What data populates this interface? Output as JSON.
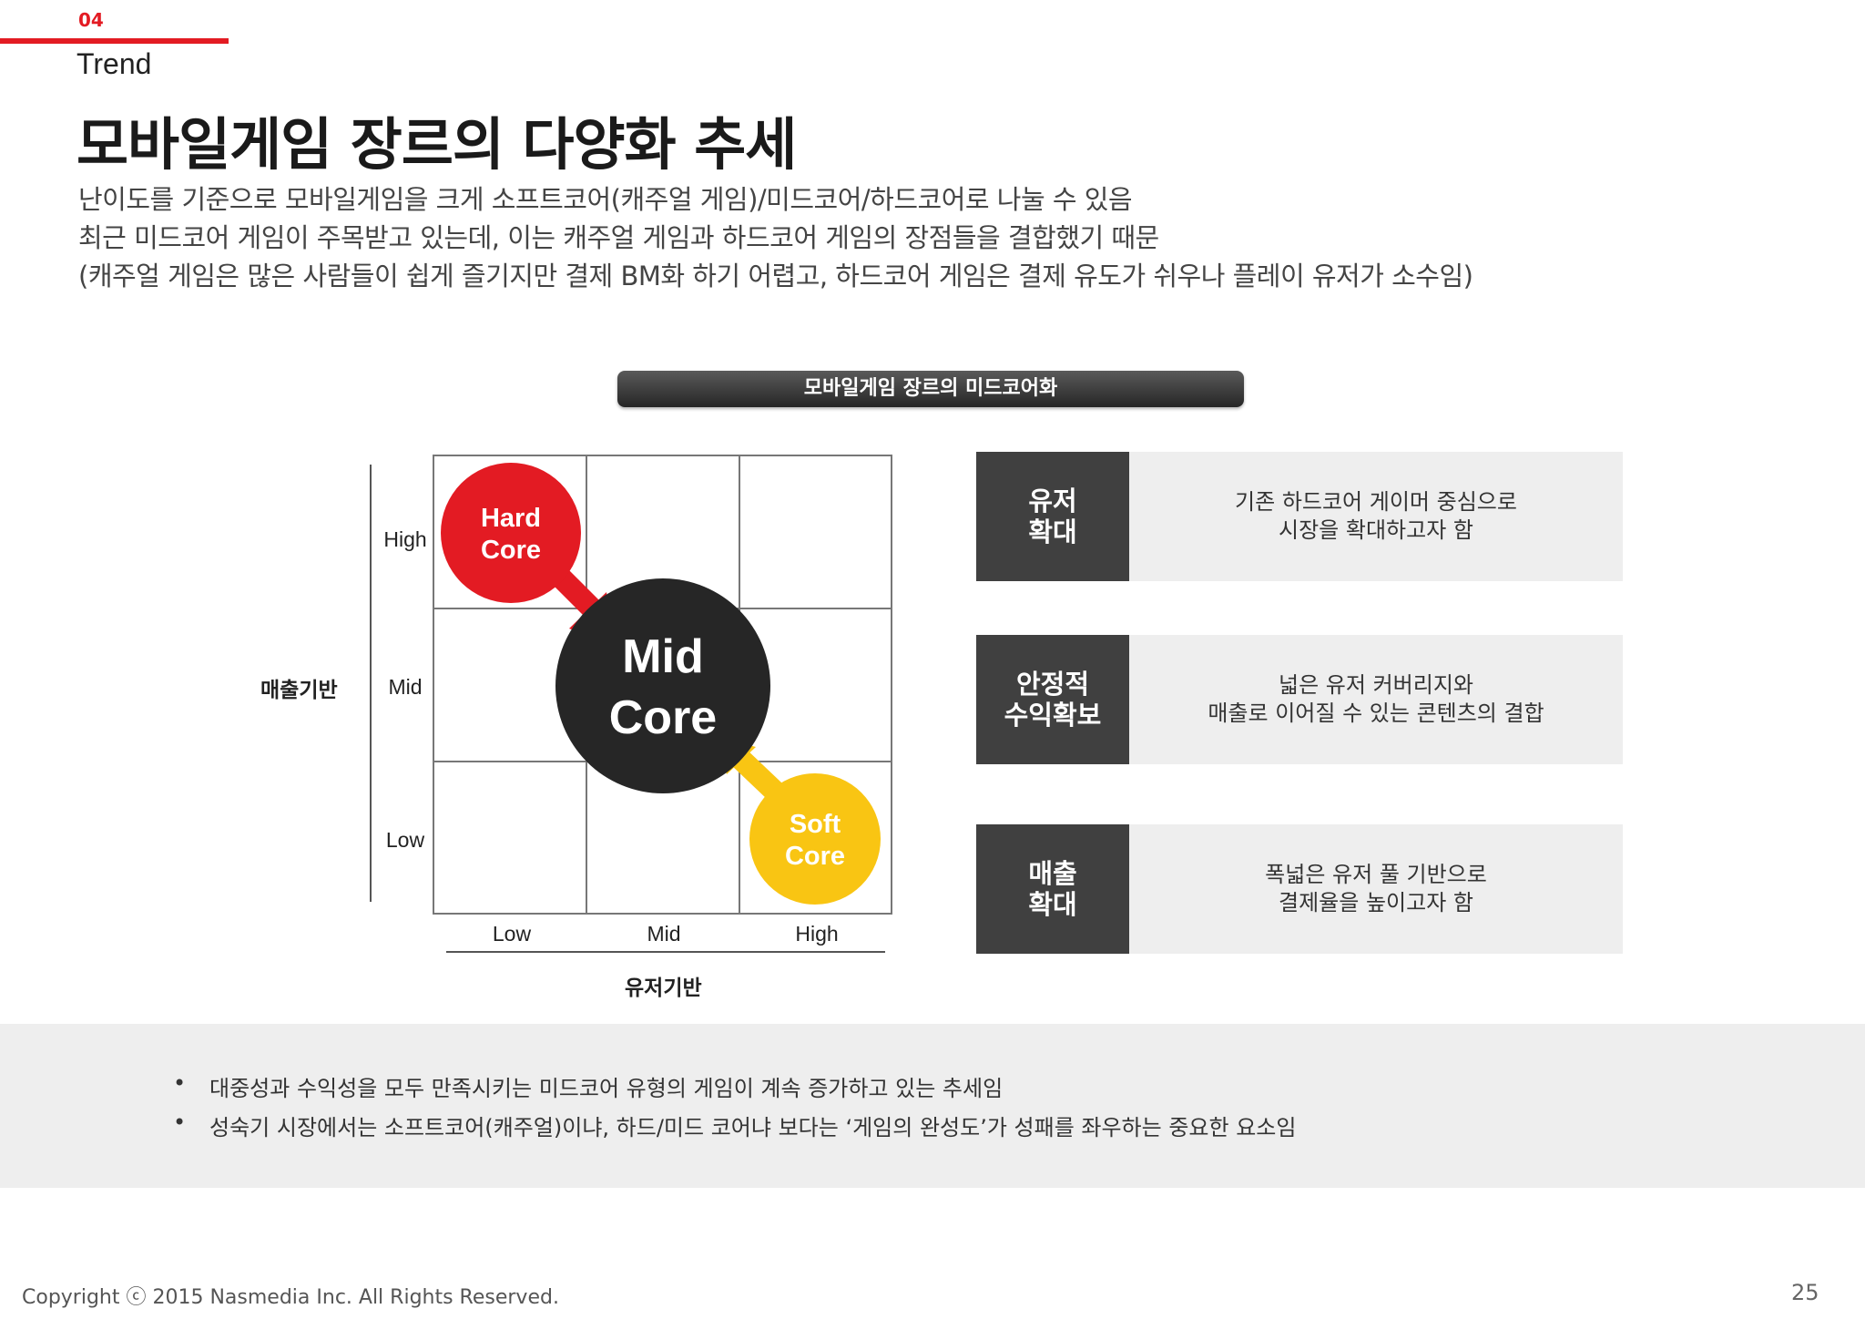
{
  "header": {
    "section_number": "04",
    "section_name": "Trend",
    "title": "모바일게임 장르의 다양화 추세",
    "description": [
      "난이도를 기준으로 모바일게임을 크게 소프트코어(캐주얼 게임)/미드코어/하드코어로 나눌 수 있음",
      "최근 미드코어 게임이 주목받고 있는데, 이는 캐주얼 게임과 하드코어 게임의 장점들을 결합했기 때문",
      "(캐주얼 게임은 많은 사람들이 쉽게 즐기지만 결제 BM화 하기 어렵고,  하드코어 게임은 결제 유도가 쉬우나 플레이 유저가 소수임)"
    ]
  },
  "banner": "모바일게임 장르의 미드코어화",
  "matrix": {
    "y_axis_label": "매출기반",
    "x_axis_label": "유저기반",
    "y_ticks": [
      "High",
      "Mid",
      "Low"
    ],
    "x_ticks": [
      "Low",
      "Mid",
      "High"
    ],
    "hard_core": {
      "line1": "Hard",
      "line2": "Core",
      "color": "#e31b23"
    },
    "mid_core": {
      "line1": "Mid",
      "line2": "Core",
      "color": "#262626"
    },
    "soft_core": {
      "line1": "Soft",
      "line2": "Core",
      "color": "#f9c513"
    }
  },
  "benefits": [
    {
      "tag": "유저\n확대",
      "text": "기존 하드코어 게이머 중심으로\n시장을 확대하고자 함"
    },
    {
      "tag": "안정적\n수익확보",
      "text": "넓은 유저 커버리지와\n매출로 이어질 수 있는 콘텐츠의 결합"
    },
    {
      "tag": "매출\n확대",
      "text": "폭넓은 유저 풀 기반으로\n결제율을 높이고자 함"
    }
  ],
  "bullets": [
    "대중성과 수익성을 모두 만족시키는 미드코어 유형의 게임이 계속 증가하고 있는 추세임",
    "성숙기 시장에서는 소프트코어(캐주얼)이냐, 하드/미드 코어냐 보다는 ‘게임의 완성도’가 성패를 좌우하는 중요한 요소임"
  ],
  "bullet_symbol": "•",
  "footer": {
    "copyright": "Copyright ⓒ 2015  Nasmedia Inc. All Rights Reserved.",
    "page": "25"
  },
  "colors": {
    "accent": "#e31b23",
    "dark": "#404040",
    "panel": "#eeeeee"
  }
}
